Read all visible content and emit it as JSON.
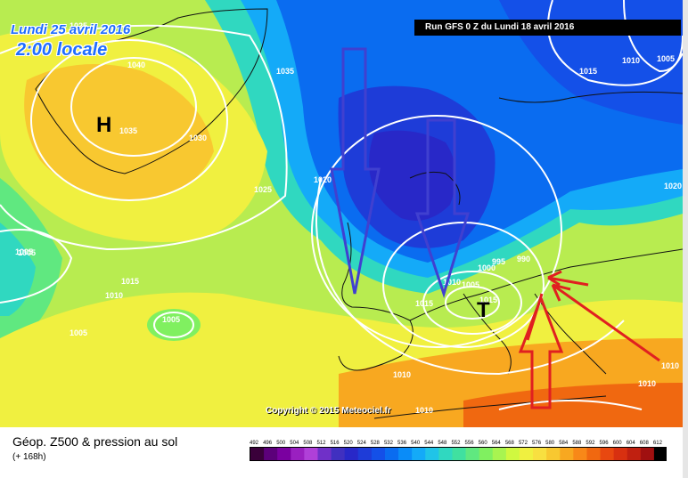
{
  "map": {
    "date_title": "Lundi 25 avril 2016",
    "time_title": "2:00 locale",
    "run_info": "Run GFS 0 Z du Lundi 18 avril 2016",
    "copyright": "Copyright © 2015 Meteociel.fr",
    "high_label": "H",
    "low_label": "T",
    "isobars": [
      "1025",
      "1040",
      "1035",
      "1030",
      "1035",
      "1025",
      "1020",
      "1005",
      "1010",
      "1015",
      "1005",
      "1005",
      "1015",
      "1010",
      "1005",
      "1000",
      "995",
      "990",
      "1015",
      "1010",
      "1005",
      "1010",
      "1010",
      "1010",
      "1015",
      "1010",
      "1005",
      "1020"
    ]
  },
  "legend": {
    "title": "Géop. Z500 & pression au sol",
    "subtitle": "(+ 168h)",
    "scale_values": [
      "492",
      "496",
      "500",
      "504",
      "508",
      "512",
      "516",
      "520",
      "524",
      "528",
      "532",
      "536",
      "540",
      "544",
      "548",
      "552",
      "556",
      "560",
      "564",
      "568",
      "572",
      "576",
      "580",
      "584",
      "588",
      "592",
      "596",
      "600",
      "604",
      "608",
      "612"
    ],
    "scale_colors": [
      "#3a003a",
      "#5c007a",
      "#7a00a0",
      "#9a20c0",
      "#b040d8",
      "#7030c8",
      "#4030c0",
      "#2828c8",
      "#1e3cd8",
      "#1450e8",
      "#0a6cf0",
      "#0a8cf8",
      "#14aaf8",
      "#20c4e8",
      "#30d8c0",
      "#40e0a0",
      "#60e880",
      "#80f060",
      "#a8f450",
      "#d0f840",
      "#f0f040",
      "#f8e040",
      "#f8c830",
      "#f8a820",
      "#f88818",
      "#f06810",
      "#e84810",
      "#d83010",
      "#c02010",
      "#a01010",
      "#000000"
    ]
  }
}
